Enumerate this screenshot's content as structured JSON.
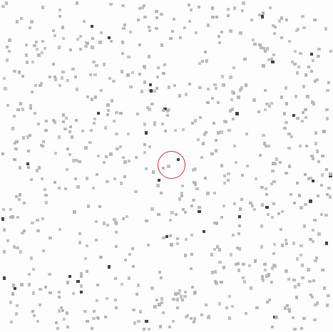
{
  "view": {
    "background_color": "#fdfdfd",
    "speck_color_light": "#b4b4b4",
    "speck_color_dark": "#3c3c3c",
    "marker_color": "#c83c3c"
  },
  "marker": {
    "icon": "target-ring-icon"
  }
}
